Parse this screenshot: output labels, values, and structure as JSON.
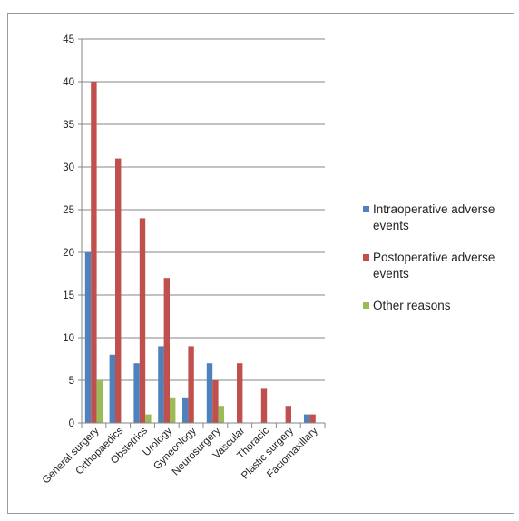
{
  "chart_data": {
    "type": "bar",
    "title": "",
    "xlabel": "",
    "ylabel": "",
    "categories": [
      "General surgery",
      "Orthopaedics",
      "Obstetrics",
      "Urology",
      "Gynecology",
      "Neurosurgery",
      "Vascular",
      "Thoracic",
      "Plastic surgery",
      "Faciomaxillary"
    ],
    "series": [
      {
        "name": "Intraoperative adverse events",
        "color": "#4f81bd",
        "values": [
          20,
          8,
          7,
          9,
          3,
          7,
          0,
          0,
          0,
          1
        ]
      },
      {
        "name": "Postoperative adverse events",
        "color": "#c0504d",
        "values": [
          40,
          31,
          24,
          17,
          9,
          5,
          7,
          4,
          2,
          1
        ]
      },
      {
        "name": "Other reasons",
        "color": "#9bbb59",
        "values": [
          5,
          0,
          1,
          3,
          0,
          2,
          0,
          0,
          0,
          0
        ]
      }
    ],
    "ylim": [
      0,
      45
    ],
    "yticks": [
      0,
      5,
      10,
      15,
      20,
      25,
      30,
      35,
      40,
      45
    ],
    "grid": true,
    "legend_position": "right"
  }
}
